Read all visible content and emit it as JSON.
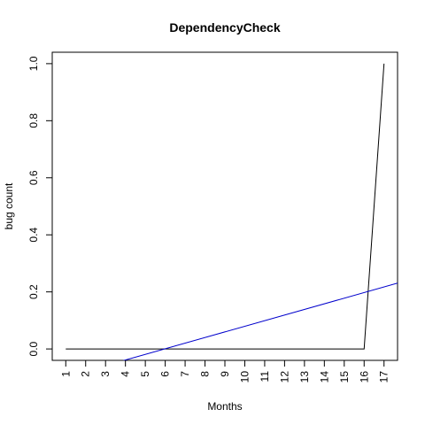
{
  "chart_data": {
    "type": "line",
    "title": "DependencyCheck",
    "xlabel": "Months",
    "ylabel": "bug count",
    "x": [
      1,
      2,
      3,
      4,
      5,
      6,
      7,
      8,
      9,
      10,
      11,
      12,
      13,
      14,
      15,
      16,
      17
    ],
    "xticks": [
      "1",
      "2",
      "3",
      "4",
      "5",
      "6",
      "7",
      "8",
      "9",
      "10",
      "11",
      "12",
      "13",
      "14",
      "15",
      "16",
      "17"
    ],
    "yticks": [
      "0.0",
      "0.2",
      "0.4",
      "0.6",
      "0.8",
      "1.0"
    ],
    "xlim": [
      0.32,
      17.68
    ],
    "ylim": [
      -0.04,
      1.04
    ],
    "grid": false,
    "series": [
      {
        "color": "#000000",
        "values": [
          0,
          0,
          0,
          0,
          0,
          0,
          0,
          0,
          0,
          0,
          0,
          0,
          0,
          0,
          0,
          0,
          1
        ]
      }
    ],
    "trend_line": {
      "color": "#0000cc",
      "slope": 0.0197,
      "intercept": -0.1175
    }
  }
}
